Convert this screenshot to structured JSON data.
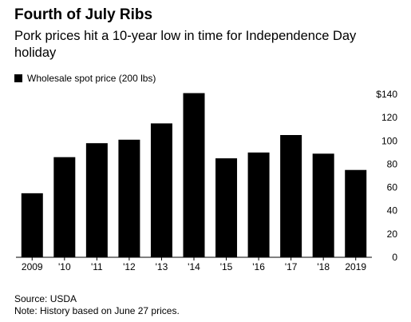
{
  "header": {
    "title": "Fourth of July Ribs",
    "subtitle": "Pork prices hit a 10-year low in time for Independence Day holiday"
  },
  "footer": {
    "source": "Source: USDA",
    "note": "Note: History based on June 27 prices."
  },
  "chart_data": {
    "type": "bar",
    "title": "Fourth of July Ribs",
    "subtitle": "Pork prices hit a 10-year low in time for Independence Day holiday",
    "categories": [
      "2009",
      "'10",
      "'11",
      "'12",
      "'13",
      "'14",
      "'15",
      "'16",
      "'17",
      "'18",
      "2019"
    ],
    "series": [
      {
        "name": "Wholesale spot price (200 lbs)",
        "color": "#000000",
        "values": [
          55,
          86,
          98,
          101,
          115,
          141,
          85,
          90,
          105,
          89,
          75
        ]
      }
    ],
    "ylim": [
      0,
      140
    ],
    "yticks": [
      0,
      20,
      40,
      60,
      80,
      100,
      120,
      140
    ],
    "ytick_labels": [
      "0",
      "20",
      "40",
      "60",
      "80",
      "100",
      "120",
      "$140"
    ],
    "y_axis_side": "right",
    "grid": false,
    "legend_position": "top-left"
  }
}
